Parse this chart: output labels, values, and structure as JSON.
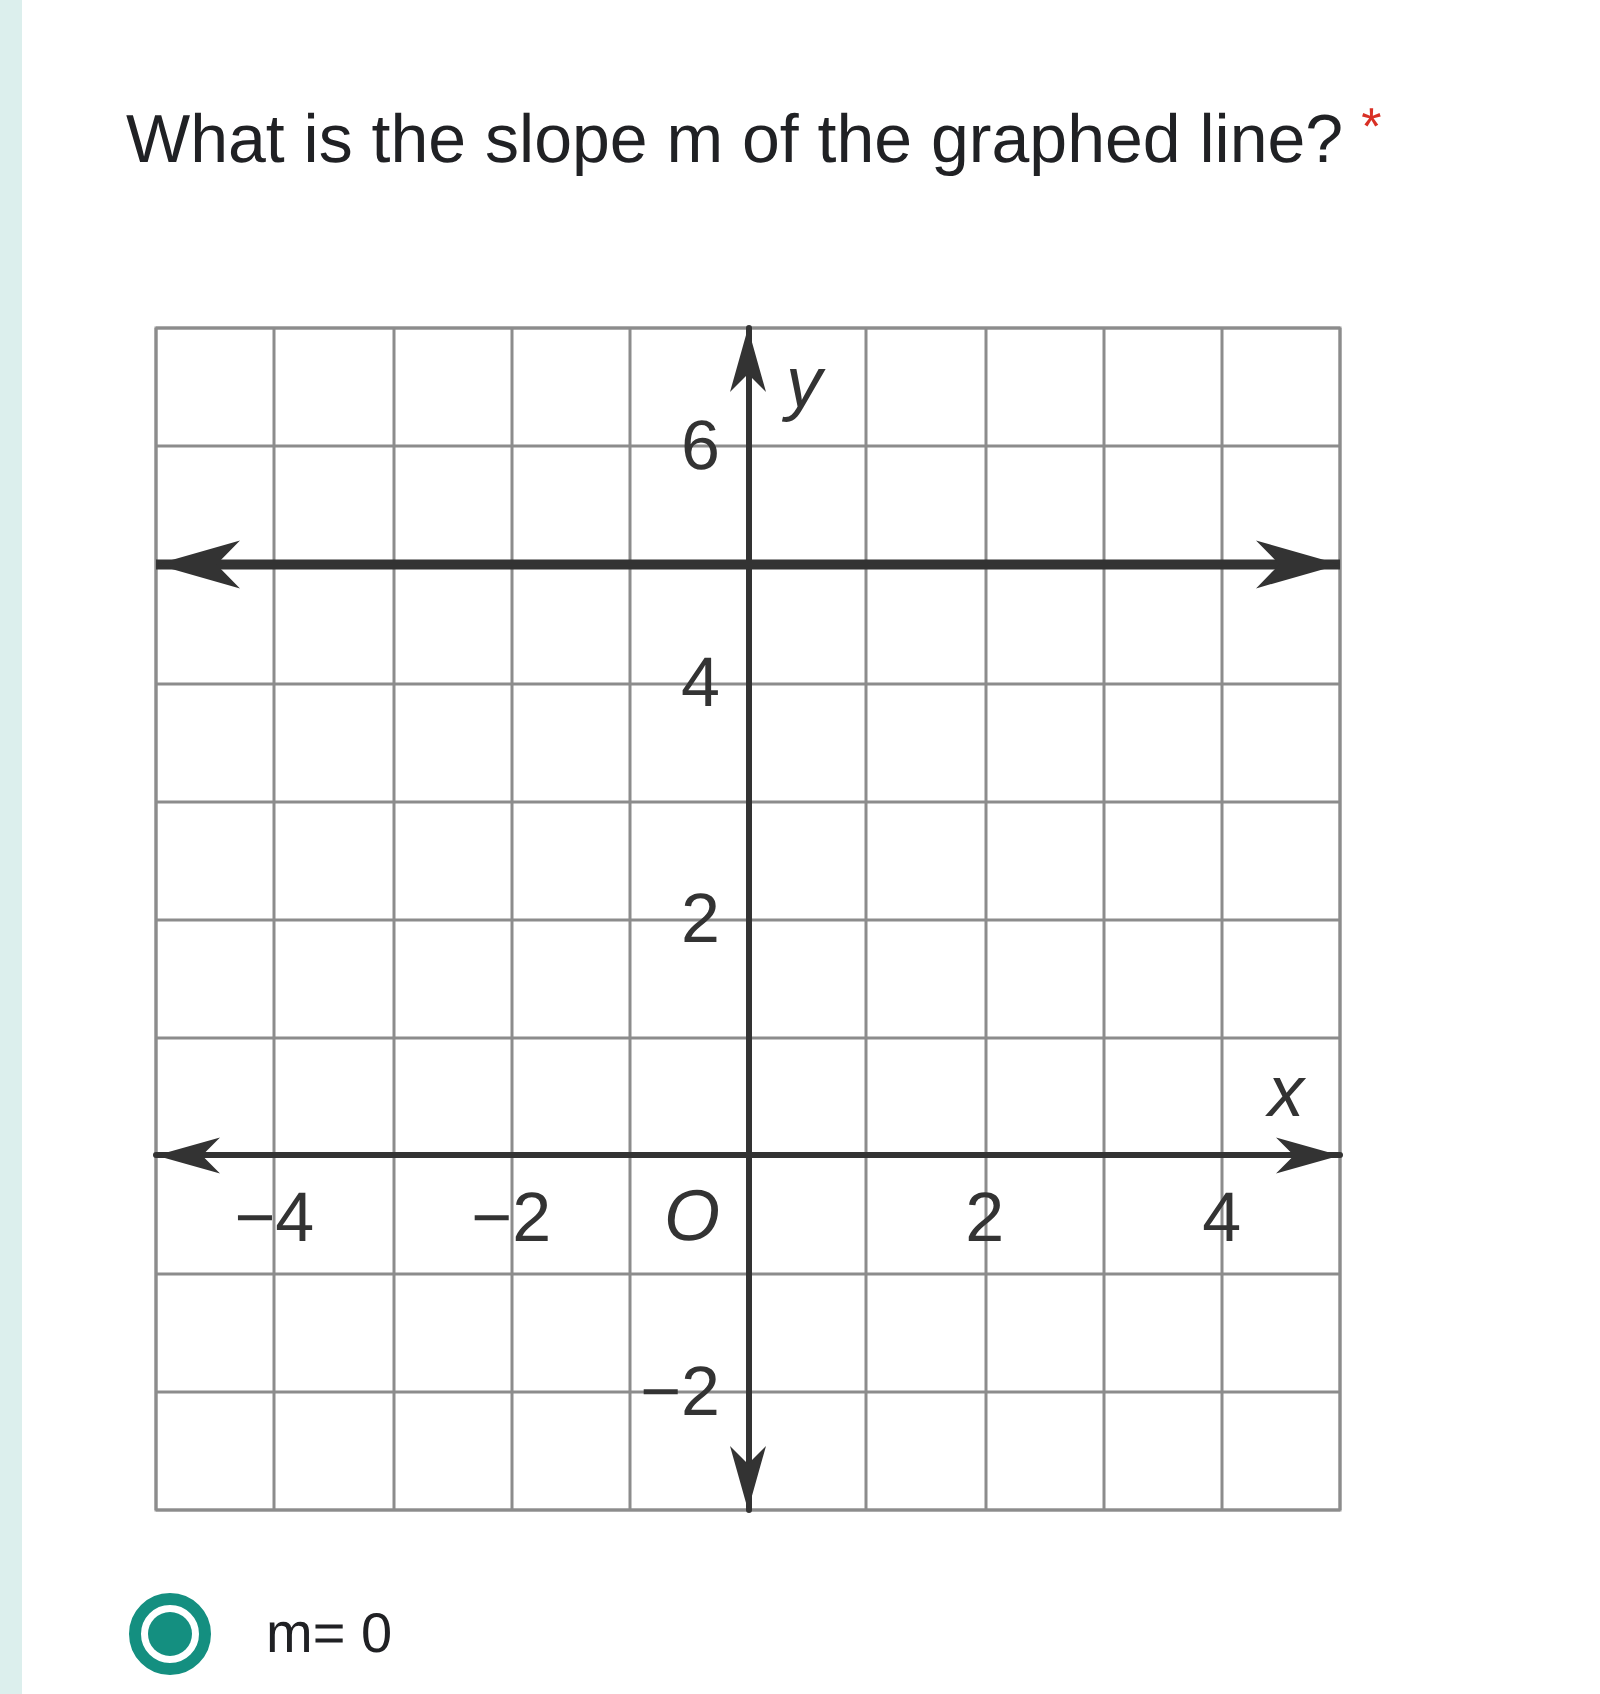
{
  "chart_data": {
    "type": "line",
    "title": "What is the slope m of the graphed line?",
    "xlabel": "x",
    "ylabel": "y",
    "annotations": [
      "*",
      "O",
      "m= 0"
    ],
    "x": [
      -5,
      5
    ],
    "series": [
      {
        "color": "#333333",
        "values": [
          5,
          5
        ]
      }
    ],
    "xlim": [
      -5,
      5
    ],
    "ylim": [
      -3,
      7
    ],
    "xticks": [
      {
        "value": -5,
        "label": null
      },
      -4,
      {
        "value": -3,
        "label": null
      },
      -2,
      {
        "value": -1,
        "label": null
      },
      {
        "value": 0,
        "label": null
      },
      {
        "value": 1,
        "label": null
      },
      2,
      {
        "value": 3,
        "label": null
      },
      4,
      {
        "value": 5,
        "label": null
      }
    ],
    "yticks": [
      {
        "value": -3,
        "label": null
      },
      -2,
      {
        "value": -1,
        "label": null
      },
      {
        "value": 0,
        "label": null
      },
      {
        "value": 1,
        "label": null
      },
      2,
      {
        "value": 3,
        "label": null
      },
      4,
      {
        "value": 5,
        "label": null
      },
      6,
      {
        "value": 7,
        "label": null
      }
    ],
    "grid": true,
    "line_style": "solid"
  }
}
